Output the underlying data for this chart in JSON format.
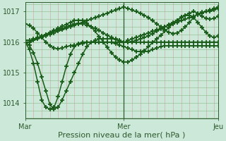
{
  "bg_color": "#cce8d8",
  "plot_bg": "#cce8d8",
  "line_color": "#1a5c1a",
  "marker": "+",
  "markersize": 5,
  "markeredgewidth": 1.3,
  "linewidth": 1.1,
  "xlabel": "Pression niveau de la mer( hPa )",
  "xlabel_fontsize": 8,
  "ytick_fontsize": 7,
  "xtick_fontsize": 7,
  "ylim": [
    1013.5,
    1017.3
  ],
  "yticks": [
    1014,
    1015,
    1016,
    1017
  ],
  "xtick_positions": [
    0,
    24,
    47
  ],
  "xtick_labels": [
    "Mar",
    "Mer",
    "Jeu"
  ],
  "vline_x": 24,
  "n": 48,
  "series": [
    [
      1016.0,
      1015.75,
      1015.3,
      1014.7,
      1014.1,
      1013.85,
      1013.8,
      1013.85,
      1014.2,
      1014.7,
      1015.2,
      1015.6,
      1015.85,
      1015.95,
      1016.0,
      1016.0,
      1016.0,
      1016.0,
      1016.0,
      1016.0,
      1016.0,
      1016.0,
      1016.0,
      1015.98,
      1015.98,
      1016.05,
      1016.1,
      1016.15,
      1016.2,
      1016.25,
      1016.3,
      1016.35,
      1016.4,
      1016.45,
      1016.5,
      1016.55,
      1016.6,
      1016.65,
      1016.7,
      1016.75,
      1016.8,
      1016.85,
      1016.9,
      1016.95,
      1017.0,
      1017.05,
      1017.1,
      1017.15
    ],
    [
      1016.0,
      1015.9,
      1015.65,
      1015.3,
      1014.85,
      1014.4,
      1013.95,
      1013.8,
      1013.85,
      1014.1,
      1014.4,
      1014.7,
      1015.0,
      1015.3,
      1015.6,
      1015.85,
      1015.98,
      1016.05,
      1016.1,
      1016.1,
      1016.1,
      1016.1,
      1016.1,
      1016.05,
      1016.0,
      1016.0,
      1016.0,
      1016.0,
      1016.0,
      1016.0,
      1016.0,
      1016.0,
      1016.0,
      1016.0,
      1016.0,
      1016.0,
      1016.0,
      1016.0,
      1016.0,
      1016.0,
      1016.0,
      1016.0,
      1016.0,
      1016.0,
      1016.0,
      1016.0,
      1016.0,
      1016.0
    ],
    [
      1016.05,
      1016.05,
      1016.1,
      1016.15,
      1016.2,
      1016.25,
      1016.3,
      1016.35,
      1016.4,
      1016.45,
      1016.5,
      1016.55,
      1016.6,
      1016.62,
      1016.6,
      1016.55,
      1016.5,
      1016.45,
      1016.38,
      1016.3,
      1016.22,
      1016.15,
      1016.08,
      1016.03,
      1016.0,
      1016.0,
      1016.02,
      1016.05,
      1016.1,
      1016.15,
      1016.2,
      1016.28,
      1016.35,
      1016.42,
      1016.5,
      1016.58,
      1016.65,
      1016.72,
      1016.8,
      1016.88,
      1016.95,
      1017.0,
      1016.95,
      1016.85,
      1016.78,
      1016.75,
      1016.78,
      1016.85
    ],
    [
      1016.6,
      1016.55,
      1016.45,
      1016.3,
      1016.15,
      1016.0,
      1015.88,
      1015.8,
      1015.78,
      1015.8,
      1015.85,
      1015.88,
      1015.9,
      1015.92,
      1015.95,
      1015.98,
      1016.0,
      1016.0,
      1016.0,
      1016.0,
      1016.0,
      1015.98,
      1015.95,
      1015.9,
      1015.85,
      1015.8,
      1015.75,
      1015.7,
      1015.68,
      1015.68,
      1015.7,
      1015.75,
      1015.8,
      1015.85,
      1015.88,
      1015.88,
      1015.88,
      1015.88,
      1015.88,
      1015.88,
      1015.88,
      1015.88,
      1015.88,
      1015.88,
      1015.88,
      1015.88,
      1015.88,
      1015.88
    ],
    [
      1016.0,
      1016.0,
      1016.05,
      1016.12,
      1016.18,
      1016.25,
      1016.32,
      1016.38,
      1016.45,
      1016.52,
      1016.58,
      1016.65,
      1016.7,
      1016.72,
      1016.7,
      1016.62,
      1016.5,
      1016.35,
      1016.18,
      1016.0,
      1015.82,
      1015.65,
      1015.5,
      1015.4,
      1015.35,
      1015.35,
      1015.4,
      1015.5,
      1015.6,
      1015.72,
      1015.85,
      1015.98,
      1016.1,
      1016.22,
      1016.35,
      1016.48,
      1016.6,
      1016.72,
      1016.82,
      1016.88,
      1016.88,
      1016.8,
      1016.65,
      1016.48,
      1016.32,
      1016.2,
      1016.15,
      1016.2
    ],
    [
      1016.0,
      1016.0,
      1016.05,
      1016.1,
      1016.15,
      1016.2,
      1016.25,
      1016.3,
      1016.35,
      1016.4,
      1016.45,
      1016.5,
      1016.55,
      1016.6,
      1016.65,
      1016.7,
      1016.75,
      1016.8,
      1016.85,
      1016.9,
      1016.95,
      1017.0,
      1017.05,
      1017.1,
      1017.15,
      1017.1,
      1017.05,
      1017.0,
      1016.95,
      1016.88,
      1016.8,
      1016.7,
      1016.6,
      1016.5,
      1016.4,
      1016.32,
      1016.28,
      1016.3,
      1016.38,
      1016.5,
      1016.65,
      1016.8,
      1016.92,
      1016.98,
      1017.0,
      1017.0,
      1017.05,
      1017.1
    ]
  ]
}
